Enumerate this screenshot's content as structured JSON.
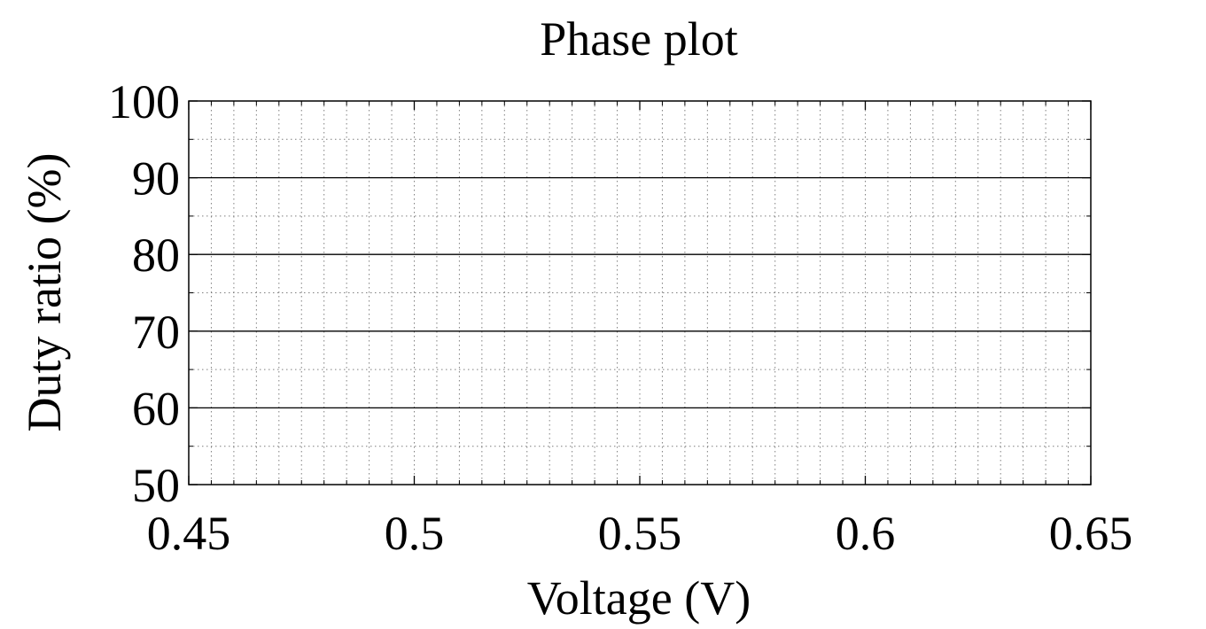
{
  "chart_data": {
    "type": "line",
    "title": "Phase plot",
    "xlabel": "Voltage (V)",
    "ylabel": "Duty ratio (%)",
    "xlim": [
      0.45,
      0.65
    ],
    "ylim": [
      50,
      100
    ],
    "xticks": [
      0.45,
      0.5,
      0.55,
      0.6,
      0.65
    ],
    "xtick_labels": [
      "0.45",
      "0.5",
      "0.55",
      "0.6",
      "0.65"
    ],
    "yticks": [
      50,
      60,
      70,
      80,
      90,
      100
    ],
    "ytick_labels": [
      "50",
      "60",
      "70",
      "80",
      "90",
      "100"
    ],
    "minor_xticks": [
      0.455,
      0.46,
      0.465,
      0.47,
      0.475,
      0.48,
      0.485,
      0.49,
      0.495,
      0.505,
      0.51,
      0.515,
      0.52,
      0.525,
      0.53,
      0.535,
      0.54,
      0.545,
      0.555,
      0.56,
      0.565,
      0.57,
      0.575,
      0.58,
      0.585,
      0.59,
      0.595,
      0.605,
      0.61,
      0.615,
      0.62,
      0.625,
      0.63,
      0.635,
      0.64,
      0.645
    ],
    "minor_yticks": [
      55,
      65,
      75,
      85,
      95
    ],
    "grid": true,
    "minor_grid": true,
    "series": [
      {
        "values": []
      }
    ],
    "line_color": "#000000",
    "major_grid_color": "#000000",
    "minor_grid_color": "#7f7f7f"
  }
}
